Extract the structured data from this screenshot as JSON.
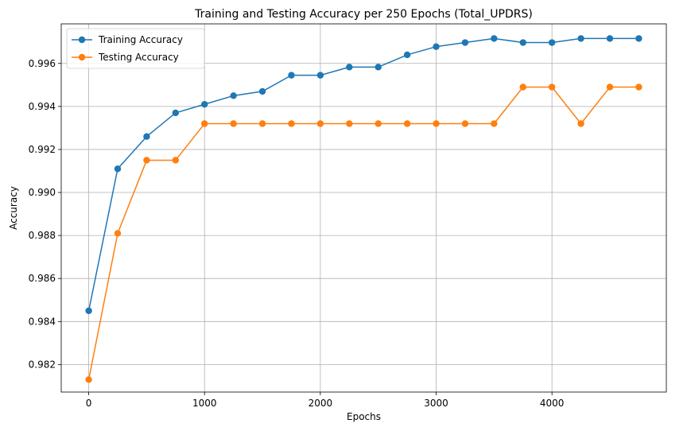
{
  "chart_data": {
    "type": "line",
    "title": "Training and Testing Accuracy per 250 Epochs (Total_UPDRS)",
    "xlabel": "Epochs",
    "ylabel": "Accuracy",
    "x": [
      0,
      250,
      500,
      750,
      1000,
      1250,
      1500,
      1750,
      2000,
      2250,
      2500,
      2750,
      3000,
      3250,
      3500,
      3750,
      4000,
      4250,
      4500,
      4750
    ],
    "series": [
      {
        "name": "Training Accuracy",
        "color": "#1f77b4",
        "values": [
          0.9845,
          0.9911,
          0.9926,
          0.9937,
          0.9941,
          0.9945,
          0.9947,
          0.99545,
          0.99545,
          0.99583,
          0.99583,
          0.9964,
          0.99678,
          0.99697,
          0.99716,
          0.99697,
          0.99697,
          0.99716,
          0.99716,
          0.99716
        ]
      },
      {
        "name": "Testing Accuracy",
        "color": "#ff7f0e",
        "values": [
          0.9813,
          0.9881,
          0.9915,
          0.9915,
          0.9932,
          0.9932,
          0.9932,
          0.9932,
          0.9932,
          0.9932,
          0.9932,
          0.9932,
          0.9932,
          0.9932,
          0.9932,
          0.9949,
          0.9949,
          0.9932,
          0.9949,
          0.9949
        ]
      }
    ],
    "xlim": [
      -237.5,
      4987.5
    ],
    "ylim": [
      0.98072,
      0.99784
    ],
    "xticks": [
      0,
      1000,
      2000,
      3000,
      4000
    ],
    "xtick_labels": [
      "0",
      "1000",
      "2000",
      "3000",
      "4000"
    ],
    "yticks": [
      0.982,
      0.984,
      0.986,
      0.988,
      0.99,
      0.992,
      0.994,
      0.996
    ],
    "ytick_labels": [
      "0.982",
      "0.984",
      "0.986",
      "0.988",
      "0.990",
      "0.992",
      "0.994",
      "0.996"
    ],
    "grid": true,
    "legend": "top-left"
  }
}
